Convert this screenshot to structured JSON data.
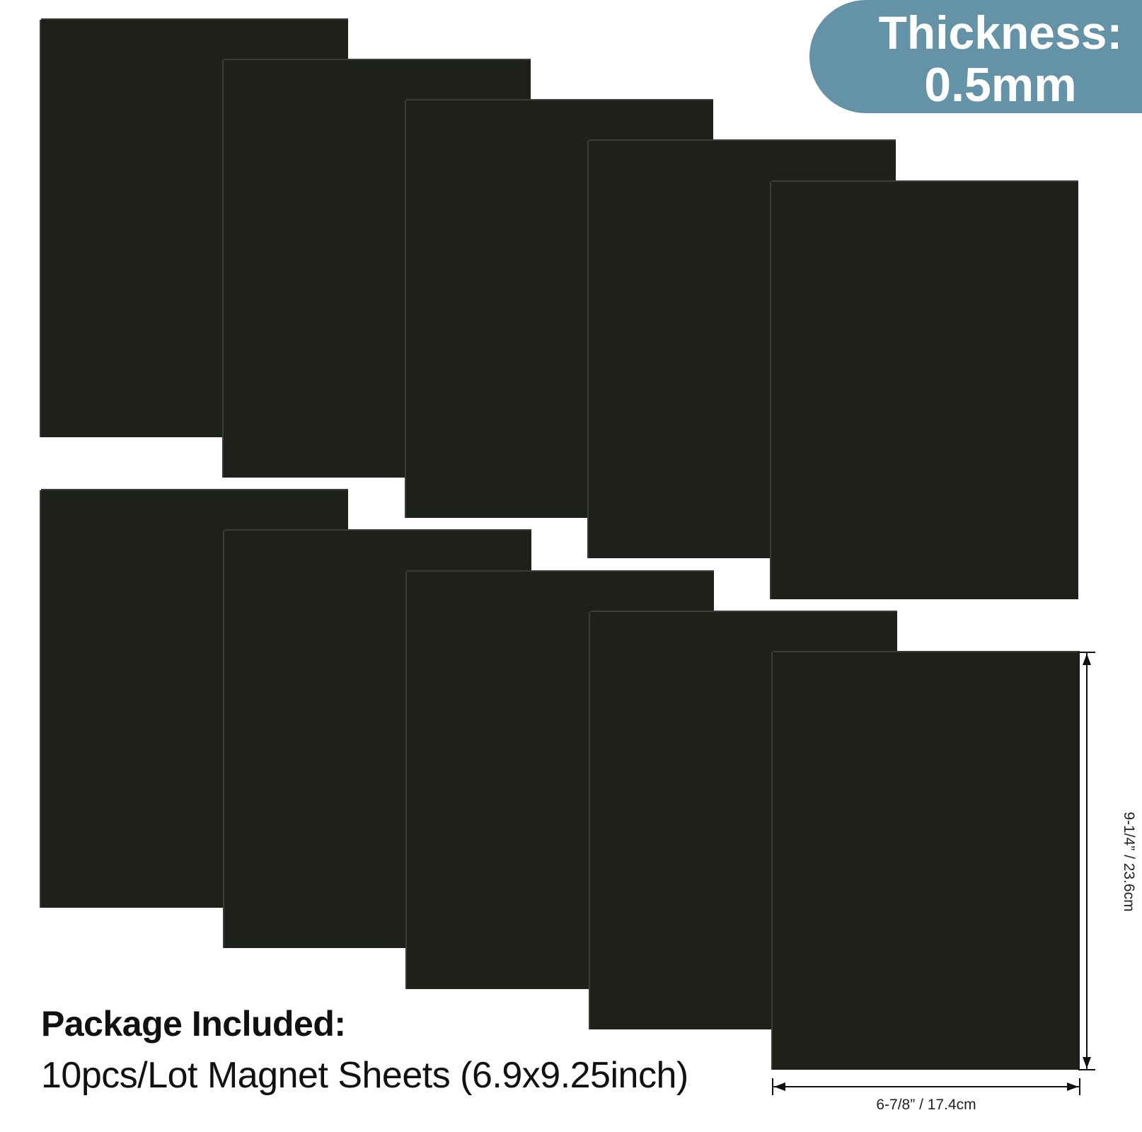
{
  "badge": {
    "line1": "Thickness:",
    "line2": "0.5mm",
    "color": "#6492a6"
  },
  "package": {
    "title": "Package Included:",
    "description": "10pcs/Lot Magnet Sheets (6.9x9.25inch)"
  },
  "dimensions": {
    "width_label": "6-7/8” / 17.4cm",
    "height_label": "9-1/4” / 23.6cm"
  },
  "sheets": {
    "count": 10,
    "color": "#1e201c"
  }
}
